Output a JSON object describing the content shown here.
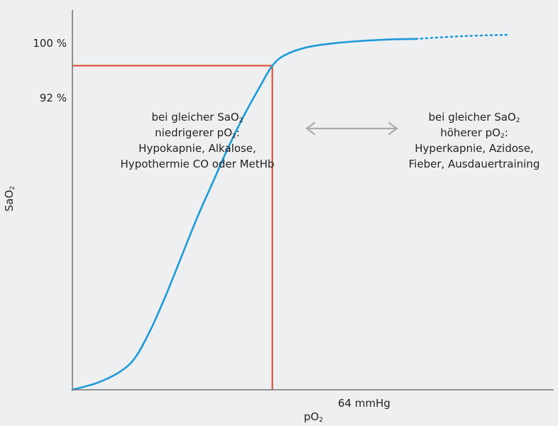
{
  "chart_data": {
    "type": "line",
    "xlabel": "pO",
    "xlabel_sub": "2",
    "ylabel": "SaO",
    "ylabel_sub": "2",
    "x_tick_label": "64 mmHg",
    "y_tick_labels": [
      "100 %",
      "92 %"
    ],
    "marker": {
      "x": 64,
      "y": 92
    },
    "xlim": [
      0,
      150
    ],
    "ylim": [
      0,
      104
    ],
    "colors": {
      "curve": "#1e9ad9",
      "reference": "#d9472b",
      "arrow": "#aaaaaa",
      "axis": "#777777"
    },
    "series": [
      {
        "x": [
          0,
          8,
          15,
          20,
          25,
          30,
          35,
          40,
          45,
          50,
          55,
          60,
          64,
          68,
          75,
          85,
          100,
          110
        ],
        "y": [
          0,
          2,
          5,
          9,
          17,
          27,
          38,
          49,
          59,
          69,
          78,
          86,
          92,
          95,
          97.2,
          98.5,
          99.4,
          99.6
        ],
        "dashed_from_x": 110,
        "dashed_x": [
          110,
          125,
          140
        ],
        "dashed_y": [
          99.6,
          100.4,
          100.8
        ]
      }
    ],
    "annotations": {
      "left": {
        "line1": "bei gleicher SaO",
        "line1_sub": "2",
        "line2": "niedrigerer pO",
        "line2_sub": "2",
        "line2_end": ":",
        "line3": "Hypokapnie, Alkalose,",
        "line4": "Hypothermie CO oder MetHb"
      },
      "right": {
        "line1": "bei gleicher SaO",
        "line1_sub": "2",
        "line2": "höherer pO",
        "line2_sub": "2",
        "line2_end": ":",
        "line3": "Hyperkapnie, Azidose,",
        "line4": "Fieber, Ausdauertraining"
      }
    }
  }
}
